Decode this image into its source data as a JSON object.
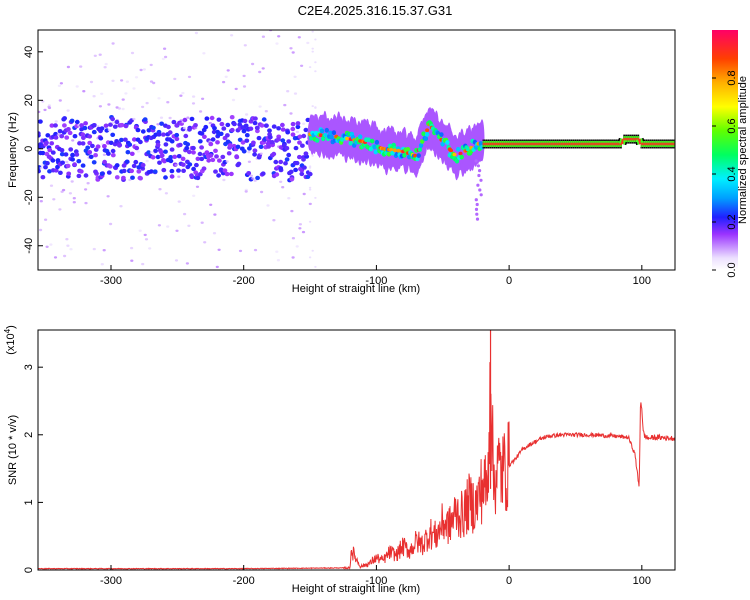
{
  "title": "C2E4.2025.316.15.37.G31",
  "chart_data": [
    {
      "type": "heatmap",
      "title": "C2E4.2025.316.15.37.G31",
      "xlabel": "Height of straight line (km)",
      "ylabel": "Frequency (Hz)",
      "xlim": [
        -355,
        125
      ],
      "ylim": [
        -50,
        49
      ],
      "x_ticks": [
        -300,
        -200,
        -100,
        0,
        100
      ],
      "x_tick_labels": [
        "-300",
        "-200",
        "-100",
        "0",
        "100"
      ],
      "y_ticks": [
        -40,
        -20,
        0,
        20,
        40
      ],
      "y_tick_labels": [
        "-40",
        "-20",
        "0",
        "20",
        "40"
      ],
      "colorbar": {
        "label": "Normalized spectral amplitude",
        "range": [
          0,
          1
        ],
        "ticks": [
          0.0,
          0.2,
          0.4,
          0.6,
          0.8
        ],
        "tick_labels": [
          "0.0",
          "0.2",
          "0.4",
          "0.6",
          "0.8"
        ]
      },
      "features": [
        {
          "segment": "noise",
          "x": [
            -355,
            -150
          ],
          "band_center_hz": 0,
          "band_halfwidth_hz": 10,
          "level": 0.15
        },
        {
          "segment": "transition",
          "x": [
            -150,
            -20
          ],
          "trace_hz": [
            [
              -150,
              6
            ],
            [
              -130,
              5
            ],
            [
              -110,
              3
            ],
            [
              -95,
              0
            ],
            [
              -80,
              -1
            ],
            [
              -70,
              -3
            ],
            [
              -60,
              10
            ],
            [
              -50,
              3
            ],
            [
              -40,
              -3
            ],
            [
              -30,
              0
            ],
            [
              -20,
              3
            ]
          ],
          "level": 0.45
        },
        {
          "segment": "steady",
          "x": [
            -20,
            125
          ],
          "trace_hz": [
            [
              -20,
              2
            ],
            [
              85,
              2
            ],
            [
              86,
              4
            ],
            [
              98,
              4
            ],
            [
              99,
              2
            ],
            [
              125,
              2
            ]
          ],
          "level": 0.92
        }
      ]
    },
    {
      "type": "line",
      "xlabel": "Height of straight line (km)",
      "ylabel": "SNR (10 * v/v)",
      "y_multiplier": "(x10",
      "y_multiplier_exp": "4",
      "y_multiplier_close": ")",
      "xlim": [
        -355,
        125
      ],
      "ylim": [
        0,
        3.55
      ],
      "x_ticks": [
        -300,
        -200,
        -100,
        0,
        100
      ],
      "x_tick_labels": [
        "-300",
        "-200",
        "-100",
        "0",
        "100"
      ],
      "y_ticks": [
        0,
        1,
        2,
        3
      ],
      "y_tick_labels": [
        "0",
        "1",
        "2",
        "3"
      ],
      "color": "#e83030",
      "series": [
        {
          "x": [
            -355,
            -200,
            -130,
            -120,
            -119,
            -112,
            -105,
            -100,
            -95,
            -90,
            -85,
            -80,
            -75,
            -70,
            -65,
            -60,
            -55,
            -50,
            -45,
            -40,
            -35,
            -30,
            -25,
            -20,
            -16,
            -14,
            -12,
            -10,
            -8,
            -5,
            0,
            5,
            10,
            15,
            20,
            25,
            30,
            40,
            50,
            60,
            70,
            80,
            90,
            95,
            98,
            99,
            100,
            101,
            102,
            105,
            110,
            115,
            120,
            125
          ],
          "y": [
            0.02,
            0.02,
            0.03,
            0.03,
            0.3,
            0.05,
            0.1,
            0.18,
            0.14,
            0.26,
            0.22,
            0.35,
            0.28,
            0.42,
            0.38,
            0.55,
            0.5,
            0.7,
            0.65,
            0.85,
            0.8,
            1.0,
            0.95,
            1.25,
            1.2,
            3.55,
            1.3,
            1.45,
            1.5,
            1.45,
            1.55,
            1.65,
            1.78,
            1.85,
            1.9,
            1.95,
            1.98,
            2.0,
            2.0,
            2.0,
            1.99,
            1.98,
            1.96,
            1.7,
            1.2,
            2.5,
            2.4,
            2.05,
            1.98,
            1.95,
            1.96,
            1.96,
            1.95,
            1.95
          ],
          "noise_x": [
            -125,
            0
          ],
          "noise_fraction": 0.45
        }
      ]
    }
  ]
}
